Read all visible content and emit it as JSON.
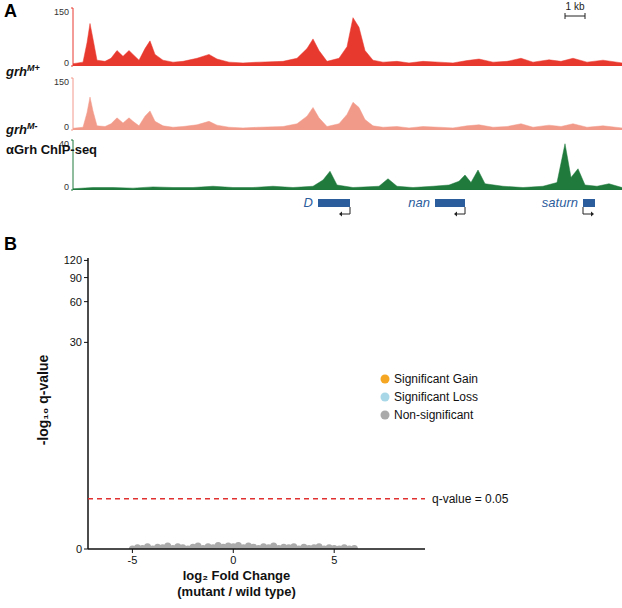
{
  "chart_data": [
    {
      "type": "area",
      "title": "A",
      "label": {
        "text": "grh",
        "sup": "M+"
      },
      "color": "#e8392f",
      "xlim": [
        0,
        27.45
      ],
      "ylim": [
        0,
        150
      ],
      "yticks": [
        0,
        150
      ],
      "tick_labels": "y",
      "scale_bar": {
        "label": "1 kb",
        "length": 1
      },
      "x": [
        0,
        0.5,
        0.7,
        0.85,
        1.0,
        1.2,
        1.6,
        1.9,
        2.2,
        2.5,
        2.8,
        3.0,
        3.3,
        3.6,
        3.85,
        4.1,
        4.5,
        5.0,
        5.5,
        6.2,
        6.8,
        7.2,
        7.8,
        8.5,
        9.3,
        10.5,
        11.2,
        11.7,
        12.0,
        12.3,
        12.7,
        13.3,
        13.7,
        14.0,
        14.3,
        14.6,
        15.0,
        15.5,
        16.2,
        16.8,
        17.5,
        18.3,
        19.0,
        19.7,
        20.3,
        21.0,
        21.7,
        22.4,
        23.0,
        23.8,
        24.4,
        25.0,
        25.7,
        26.5,
        27.45
      ],
      "values": [
        6,
        10,
        60,
        110,
        70,
        15,
        12,
        20,
        40,
        25,
        40,
        30,
        15,
        45,
        65,
        30,
        15,
        10,
        12,
        20,
        30,
        18,
        10,
        8,
        10,
        12,
        20,
        45,
        70,
        40,
        12,
        20,
        50,
        125,
        100,
        40,
        15,
        10,
        12,
        8,
        12,
        10,
        8,
        14,
        18,
        10,
        12,
        20,
        10,
        16,
        12,
        20,
        10,
        15,
        8
      ]
    },
    {
      "type": "area",
      "label": {
        "text": "grh",
        "sup": "M-"
      },
      "color": "#f29a8a",
      "xlim": [
        0,
        27.45
      ],
      "ylim": [
        0,
        150
      ],
      "yticks": [
        0,
        150
      ],
      "tick_labels": "y",
      "x": [
        0,
        0.5,
        0.7,
        0.85,
        1.0,
        1.2,
        1.6,
        1.9,
        2.2,
        2.5,
        2.8,
        3.0,
        3.3,
        3.6,
        3.85,
        4.1,
        4.5,
        5.0,
        5.5,
        6.2,
        6.8,
        7.2,
        7.8,
        8.5,
        9.3,
        10.5,
        11.2,
        11.7,
        12.0,
        12.3,
        12.7,
        13.3,
        13.7,
        14.0,
        14.3,
        14.6,
        15.0,
        15.5,
        16.2,
        16.8,
        17.5,
        18.3,
        19.0,
        19.7,
        20.3,
        21.0,
        21.7,
        22.4,
        23.0,
        23.8,
        24.4,
        25.0,
        25.7,
        26.5,
        27.45
      ],
      "values": [
        5,
        8,
        50,
        95,
        55,
        12,
        10,
        18,
        35,
        20,
        35,
        25,
        12,
        40,
        55,
        25,
        12,
        8,
        10,
        15,
        25,
        14,
        8,
        6,
        8,
        10,
        18,
        40,
        65,
        35,
        10,
        18,
        45,
        80,
        65,
        30,
        12,
        8,
        10,
        6,
        10,
        8,
        6,
        12,
        15,
        8,
        10,
        18,
        8,
        14,
        10,
        18,
        8,
        12,
        6
      ]
    },
    {
      "type": "area",
      "label": {
        "text": "αGrh ChIP-seq"
      },
      "color": "#1f7a3c",
      "xlim": [
        0,
        27.45
      ],
      "ylim": [
        0,
        40
      ],
      "yticks": [
        0,
        40
      ],
      "tick_labels": "y",
      "x": [
        0,
        1,
        2,
        3,
        4,
        5,
        6,
        7,
        8,
        9,
        10,
        11,
        12,
        12.5,
        12.85,
        13.2,
        14,
        15.3,
        15.75,
        16.2,
        17,
        18,
        18.8,
        19.3,
        19.6,
        19.9,
        20.25,
        20.6,
        21.5,
        22.5,
        23.5,
        24.2,
        24.6,
        24.9,
        25.25,
        25.6,
        26.2,
        26.8,
        27.45
      ],
      "values": [
        1,
        2,
        2,
        1.5,
        2.5,
        2,
        2,
        3,
        2,
        2,
        3,
        2,
        3,
        8,
        15,
        4,
        2,
        3,
        9,
        3,
        2,
        3,
        4,
        7,
        12,
        6,
        16,
        5,
        3,
        2,
        3,
        6,
        37,
        10,
        17,
        4,
        3,
        5,
        2
      ],
      "genes": [
        {
          "label": "D",
          "start": 12.25,
          "end": 13.85,
          "strand": "-"
        },
        {
          "label": "nan",
          "start": 18.1,
          "end": 19.6,
          "strand": "-"
        },
        {
          "label": "saturn",
          "start": 25.5,
          "end": 26.1,
          "strand": "+"
        }
      ]
    },
    {
      "type": "scatter",
      "title": "B",
      "x_label": [
        "log₂ Fold Change",
        "(mutant / wild type)"
      ],
      "y_label": "-log₁₀ q-value",
      "xlim": [
        -7.2,
        9.5
      ],
      "ylim": [
        0,
        125
      ],
      "xticks": [
        -5,
        0,
        5
      ],
      "yticks": [
        0,
        30,
        60,
        90,
        120
      ],
      "log": "y",
      "legend": "right",
      "hlines": [
        {
          "value": 1.301,
          "label": "q-value = 0.05",
          "color": "#e03030"
        }
      ],
      "series": [
        {
          "name": "Significant Gain",
          "color": "#f5a623",
          "x": [],
          "values": []
        },
        {
          "name": "Significant Loss",
          "color": "#a8d8e8",
          "x": [],
          "values": []
        },
        {
          "name": "Non-significant",
          "color": "#aaaaaa",
          "x": [
            -5,
            -4.75,
            -4.5,
            -4.25,
            -4,
            -3.75,
            -3.5,
            -3.25,
            -3,
            -2.75,
            -2.5,
            -2.25,
            -2,
            -1.75,
            -1.5,
            -1.25,
            -1,
            -0.75,
            -0.5,
            -0.25,
            0,
            0.25,
            0.5,
            0.75,
            1,
            1.25,
            1.5,
            1.75,
            2,
            2.25,
            2.5,
            2.75,
            3,
            3.25,
            3.5,
            3.75,
            4,
            4.25,
            4.5,
            4.75,
            5,
            5.25,
            5.5,
            5.75,
            6
          ],
          "values": [
            0,
            0.02,
            0.01,
            0.04,
            0,
            0.03,
            0.02,
            0.05,
            0.01,
            0.04,
            0.02,
            0,
            0.03,
            0.05,
            0.01,
            0.04,
            0.02,
            0.06,
            0.03,
            0.05,
            0.04,
            0.06,
            0.02,
            0.05,
            0.03,
            0.01,
            0.04,
            0.02,
            0.05,
            0.01,
            0.03,
            0.02,
            0.04,
            0,
            0.03,
            0.01,
            0.02,
            0.04,
            0,
            0.02,
            0.01,
            0,
            0.02,
            0,
            0.01
          ]
        }
      ]
    }
  ]
}
